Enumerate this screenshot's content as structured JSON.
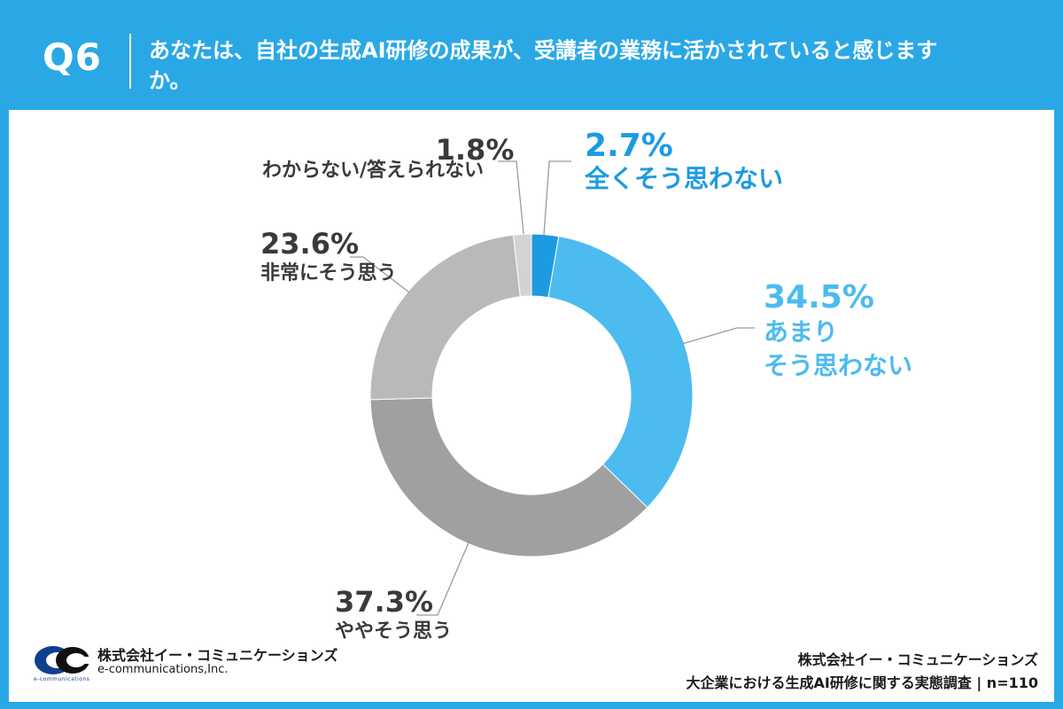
{
  "question": {
    "number": "Q6",
    "text": "あなたは、自社の生成AI研修の成果が、受講者の業務に活かされていると感じますか。"
  },
  "chart_data": {
    "type": "pie",
    "donut": true,
    "start": "top, clockwise",
    "slices": [
      {
        "label": "全くそう思わない",
        "label_lines": [
          "全くそう思わない"
        ],
        "value": 2.7,
        "value_text": "2.7%",
        "color": "#1d9be0",
        "label_color": "#1d9be0"
      },
      {
        "label": "あまりそう思わない",
        "label_lines": [
          "あまり",
          "そう思わない"
        ],
        "value": 34.5,
        "value_text": "34.5%",
        "color": "#4cbbef",
        "label_color": "#4cbbef"
      },
      {
        "label": "ややそう思う",
        "label_lines": [
          "ややそう思う"
        ],
        "value": 37.3,
        "value_text": "37.3%",
        "color": "#a0a0a0",
        "label_color": "#3a3a3a"
      },
      {
        "label": "非常にそう思う",
        "label_lines": [
          "非常にそう思う"
        ],
        "value": 23.6,
        "value_text": "23.6%",
        "color": "#b9b9b9",
        "label_color": "#3a3a3a"
      },
      {
        "label": "わからない/答えられない",
        "label_lines": [
          "わからない/答えられない"
        ],
        "value": 1.8,
        "value_text": "1.8%",
        "color": "#d3d3d3",
        "label_color": "#3a3a3a"
      }
    ]
  },
  "footer": {
    "company_ja": "株式会社イー・コミュニケーションズ",
    "company_en": "e-communications,Inc.",
    "logo_tiny": "e-communications",
    "source_company": "株式会社イー・コミュニケーションズ",
    "source_survey": "大企業における生成AI研修に関する実態調査",
    "sample": "n=110"
  },
  "colors": {
    "frame": "#2aa8e6",
    "panel": "#ffffff"
  }
}
